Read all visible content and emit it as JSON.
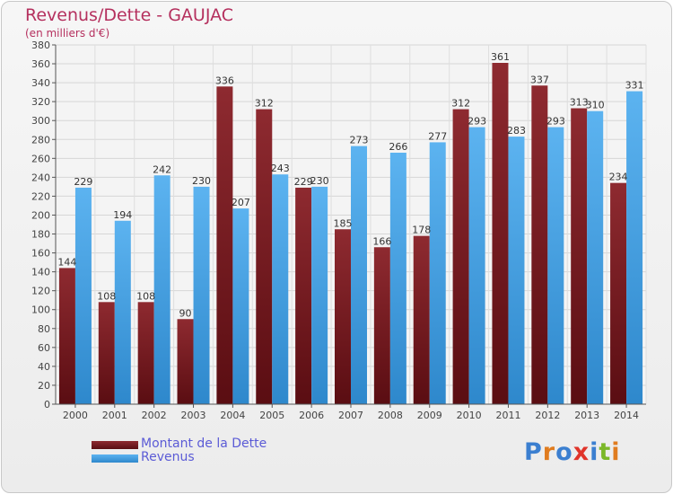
{
  "chart_data": {
    "type": "bar",
    "title": "Revenus/Dette - GAUJAC",
    "subtitle": "(en milliers d'€)",
    "categories": [
      "2000",
      "2001",
      "2002",
      "2003",
      "2004",
      "2005",
      "2006",
      "2007",
      "2008",
      "2009",
      "2010",
      "2011",
      "2012",
      "2013",
      "2014"
    ],
    "series": [
      {
        "name": "Montant de la Dette",
        "color": "#7b1c22",
        "values": [
          144,
          108,
          108,
          90,
          336,
          312,
          229,
          185,
          166,
          178,
          312,
          361,
          337,
          313,
          234
        ]
      },
      {
        "name": "Revenus",
        "color": "#4ea6e6",
        "values": [
          229,
          194,
          242,
          230,
          207,
          243,
          230,
          273,
          266,
          277,
          293,
          283,
          293,
          310,
          331
        ]
      }
    ],
    "ylim": [
      0,
      380
    ],
    "ytick_step": 20,
    "grid": true,
    "legend_position": "bottom-left"
  },
  "legend": {
    "items": [
      {
        "label": "Montant de la Dette",
        "color": "#7b1c22"
      },
      {
        "label": "Revenus",
        "color": "#4ea6e6"
      }
    ]
  },
  "logo": {
    "text": "Proxiti",
    "letter_colors": [
      "#3b7fd0",
      "#e07c1f",
      "#3b7fd0",
      "#e0342a",
      "#3b7fd0",
      "#7cb829",
      "#e07c1f"
    ]
  }
}
